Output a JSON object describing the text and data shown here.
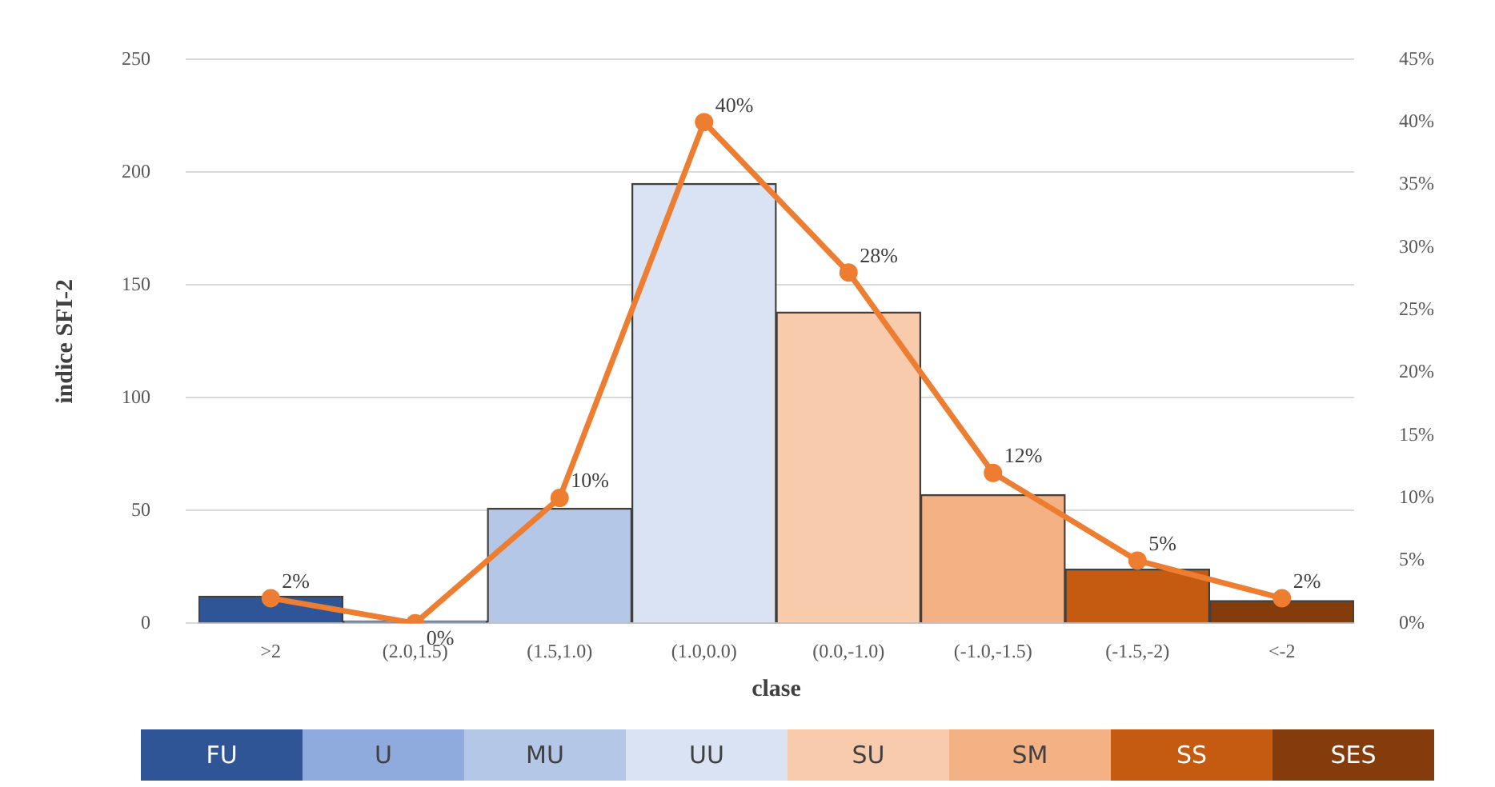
{
  "chart_data": {
    "type": "bar",
    "xlabel": "clase",
    "ylabel": "indice SFI-2",
    "categories": [
      ">2",
      "(2.0,1.5)",
      "(1.5,1.0)",
      "(1.0,0.0)",
      "(0.0,-1.0)",
      "(-1.0,-1.5)",
      "(-1.5,-2)",
      "<-2"
    ],
    "series": [
      {
        "colors": [
          "#2f5597",
          "#8faadc",
          "#b4c7e7",
          "#dae3f3",
          "#f8cbad",
          "#f4b183",
          "#c55a11",
          "#843c0c"
        ],
        "values": [
          12,
          1,
          51,
          195,
          138,
          57,
          24,
          10
        ]
      },
      {
        "type": "line",
        "axis": "y2",
        "color": "#ed7d31",
        "values": [
          2,
          0,
          10,
          40,
          28,
          12,
          5,
          2
        ],
        "value_labels": [
          "2%",
          "0%",
          "10%",
          "40%",
          "28%",
          "12%",
          "5%",
          "2%"
        ]
      }
    ],
    "ylim": [
      0,
      250
    ],
    "yticks": [
      0,
      50,
      100,
      150,
      200,
      250
    ],
    "y2lim": [
      0,
      45
    ],
    "y2ticks": [
      {
        "value": 0,
        "label": "0%"
      },
      {
        "value": 5,
        "label": "5%"
      },
      {
        "value": 10,
        "label": "10%"
      },
      {
        "value": 15,
        "label": "15%"
      },
      {
        "value": 20,
        "label": "20%"
      },
      {
        "value": 25,
        "label": "25%"
      },
      {
        "value": 30,
        "label": "30%"
      },
      {
        "value": 35,
        "label": "35%"
      },
      {
        "value": 40,
        "label": "40%"
      },
      {
        "value": 45,
        "label": "45%"
      }
    ],
    "grid": "y",
    "marker": "circle",
    "annotations": [
      "FU",
      "U",
      "MU",
      "UU",
      "SU",
      "SM",
      "SS",
      "SES"
    ]
  }
}
